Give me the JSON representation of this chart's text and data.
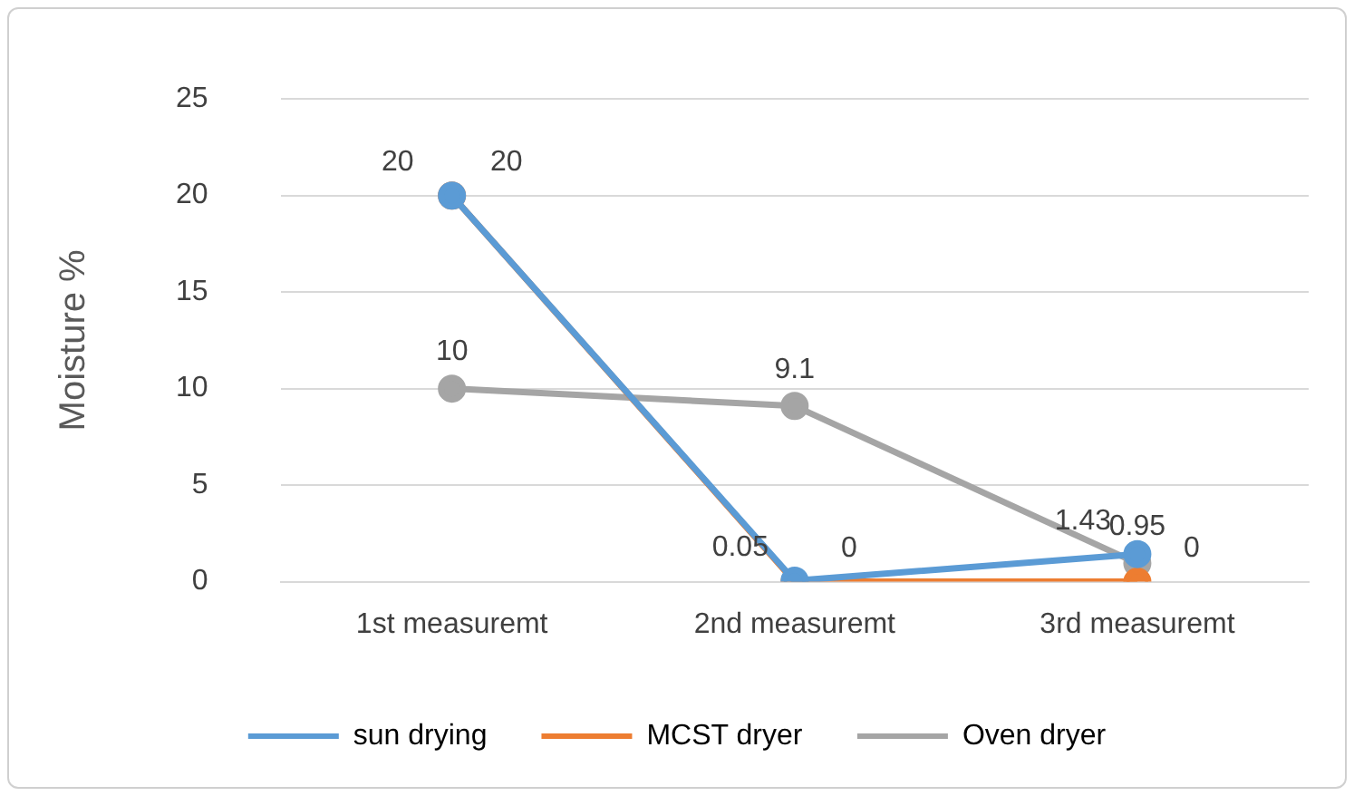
{
  "chart_data": {
    "type": "line",
    "ylabel": "Moisture %",
    "categories": [
      "1st measuremt",
      "2nd measuremt",
      "3rd measuremt"
    ],
    "series": [
      {
        "name": "sun drying",
        "color": "#5b9bd5",
        "values": [
          20,
          0.05,
          1.43
        ]
      },
      {
        "name": "MCST dryer",
        "color": "#ed7d31",
        "values": [
          20,
          0,
          0
        ]
      },
      {
        "name": "Oven dryer",
        "color": "#a5a5a5",
        "values": [
          10,
          9.1,
          0.95
        ]
      }
    ],
    "ylim": [
      0,
      25
    ],
    "yticks": [
      0,
      5,
      10,
      15,
      20,
      25
    ],
    "grid": "y",
    "legend": "bottom",
    "marker": "circle",
    "data_labels": true
  }
}
